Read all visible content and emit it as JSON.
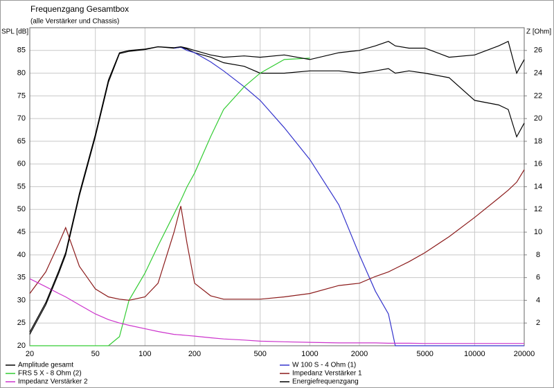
{
  "chart_data": {
    "type": "line",
    "title": "Frequenzgang Gesamtbox",
    "subtitle": "(alle Verstärker und Chassis)",
    "y_label": "SPL [dB]",
    "y2_label": "Z [Ohm]",
    "log_x": true,
    "grid": true,
    "x": [
      20,
      25,
      30,
      33,
      40,
      50,
      60,
      70,
      80,
      100,
      120,
      150,
      165,
      180,
      200,
      250,
      300,
      400,
      500,
      700,
      1000,
      1500,
      2000,
      2500,
      3000,
      3300,
      4000,
      5000,
      7000,
      10000,
      14000,
      16000,
      18000,
      20000
    ],
    "xlim": [
      20,
      20000
    ],
    "xticks": [
      20,
      50,
      100,
      200,
      500,
      1000,
      2000,
      5000,
      10000,
      20000
    ],
    "ylim": [
      20,
      90
    ],
    "yticks": [
      20,
      25,
      30,
      35,
      40,
      45,
      50,
      55,
      60,
      65,
      70,
      75,
      80,
      85
    ],
    "y2lim": [
      0,
      28
    ],
    "y2ticks": [
      2,
      4,
      6,
      8,
      10,
      12,
      14,
      16,
      18,
      20,
      22,
      24,
      26
    ],
    "series": [
      {
        "name": "Amplitude gesamt",
        "color": "#000000",
        "values": [
          22.5,
          29,
          36,
          40,
          53,
          66,
          78,
          84.3,
          84.8,
          85.2,
          85.8,
          85.5,
          85.7,
          85.3,
          84.5,
          83.5,
          82.3,
          81.5,
          80,
          80,
          80.5,
          80.5,
          80,
          80.5,
          81,
          80,
          80.5,
          80,
          79,
          74,
          73,
          72,
          66,
          69
        ]
      },
      {
        "name": "W 100 S - 4 Ohm (1)",
        "color": "#3333cc",
        "values": [
          null,
          null,
          null,
          null,
          null,
          null,
          null,
          null,
          null,
          null,
          null,
          85.5,
          85.7,
          85,
          84.5,
          82.5,
          80.5,
          77,
          74,
          68,
          61,
          51,
          40,
          32,
          27,
          20,
          20,
          20,
          20,
          20,
          20,
          20,
          20,
          20
        ]
      },
      {
        "name": "FRS 5 X - 8 Ohm (2)",
        "color": "#33cc33",
        "values": [
          20,
          20,
          20,
          20,
          20,
          20,
          20,
          22,
          30,
          36,
          42,
          49,
          52,
          55,
          58,
          66,
          72,
          77,
          80,
          83,
          83.3,
          null,
          null,
          null,
          null,
          null,
          null,
          null,
          null,
          null,
          null,
          null,
          null,
          null
        ]
      },
      {
        "name": "Impedanz Verstärker 1",
        "color": "#8b1a1a",
        "axis": "y2",
        "values": [
          4.6,
          6.5,
          9,
          10.4,
          7,
          5,
          4.3,
          4.1,
          4,
          4.3,
          5.5,
          10,
          12.3,
          9,
          5.5,
          4.4,
          4.1,
          4.1,
          4.1,
          4.3,
          4.6,
          5.3,
          5.5,
          6.1,
          6.5,
          6.8,
          7.4,
          8.2,
          9.6,
          11.3,
          13,
          13.7,
          14.4,
          15.5
        ]
      },
      {
        "name": "Impedanz Verstärker 2",
        "color": "#cc33cc",
        "axis": "y2",
        "values": [
          5.9,
          5.2,
          4.6,
          4.3,
          3.6,
          2.8,
          2.3,
          2,
          1.8,
          1.5,
          1.25,
          1,
          0.95,
          0.9,
          0.85,
          0.7,
          0.6,
          0.5,
          0.4,
          0.35,
          0.3,
          0.25,
          0.25,
          0.25,
          0.22,
          0.22,
          0.22,
          0.2,
          0.2,
          0.2,
          0.2,
          0.2,
          0.2,
          0.2
        ]
      },
      {
        "name": "Energiefrequenzgang",
        "color": "#000000",
        "values": [
          23,
          29.5,
          36.5,
          40.5,
          53.5,
          66.5,
          78.5,
          84.5,
          85,
          85.3,
          85.8,
          85.6,
          85.8,
          85.5,
          85,
          84,
          83.5,
          83.8,
          83.5,
          84,
          83,
          84.5,
          85,
          86,
          87,
          86,
          85.5,
          85.5,
          83.5,
          84,
          86,
          87,
          80,
          83
        ]
      }
    ]
  }
}
